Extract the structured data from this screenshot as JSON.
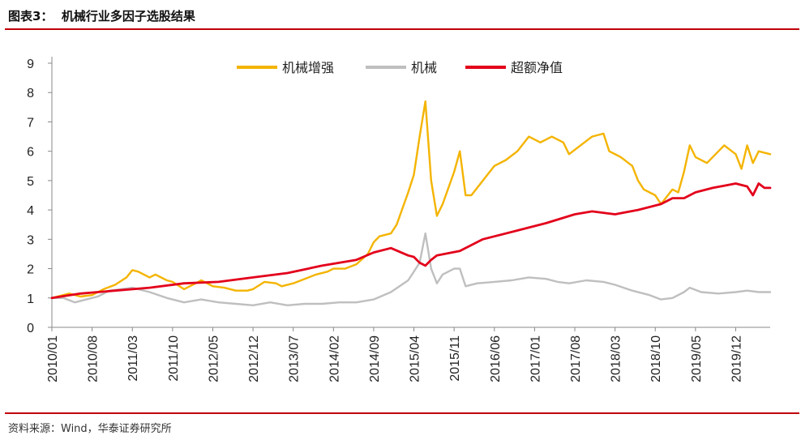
{
  "header": {
    "title": "图表3：  机械行业多因子选股结果"
  },
  "footer": {
    "source": "资料来源：Wind，华泰证券研究所"
  },
  "chart_data": {
    "type": "line",
    "ylim": [
      0,
      9
    ],
    "y_ticks": [
      0,
      1,
      2,
      3,
      4,
      5,
      6,
      7,
      8,
      9
    ],
    "x_range": [
      "2010-01",
      "2020-06"
    ],
    "x_tick_labels": [
      "2010/01",
      "2010/08",
      "2011/03",
      "2011/10",
      "2012/05",
      "2012/12",
      "2013/07",
      "2014/02",
      "2014/09",
      "2015/04",
      "2015/11",
      "2016/06",
      "2017/01",
      "2017/08",
      "2018/03",
      "2018/10",
      "2019/05",
      "2019/12"
    ],
    "legend_position": "top",
    "grid": false,
    "series": [
      {
        "name": "机械增强",
        "color": "#f4b400",
        "points": [
          [
            "2010-01",
            1.0
          ],
          [
            "2010-04",
            1.15
          ],
          [
            "2010-06",
            1.05
          ],
          [
            "2010-08",
            1.1
          ],
          [
            "2010-10",
            1.3
          ],
          [
            "2010-12",
            1.45
          ],
          [
            "2011-02",
            1.7
          ],
          [
            "2011-03",
            1.95
          ],
          [
            "2011-04",
            1.9
          ],
          [
            "2011-06",
            1.7
          ],
          [
            "2011-07",
            1.8
          ],
          [
            "2011-09",
            1.6
          ],
          [
            "2011-10",
            1.55
          ],
          [
            "2011-12",
            1.3
          ],
          [
            "2012-02",
            1.5
          ],
          [
            "2012-03",
            1.6
          ],
          [
            "2012-05",
            1.4
          ],
          [
            "2012-07",
            1.35
          ],
          [
            "2012-09",
            1.25
          ],
          [
            "2012-11",
            1.25
          ],
          [
            "2012-12",
            1.3
          ],
          [
            "2013-02",
            1.55
          ],
          [
            "2013-04",
            1.5
          ],
          [
            "2013-05",
            1.4
          ],
          [
            "2013-07",
            1.5
          ],
          [
            "2013-09",
            1.65
          ],
          [
            "2013-11",
            1.8
          ],
          [
            "2014-01",
            1.9
          ],
          [
            "2014-02",
            2.0
          ],
          [
            "2014-04",
            2.0
          ],
          [
            "2014-06",
            2.15
          ],
          [
            "2014-08",
            2.5
          ],
          [
            "2014-09",
            2.9
          ],
          [
            "2014-10",
            3.1
          ],
          [
            "2014-12",
            3.2
          ],
          [
            "2015-01",
            3.5
          ],
          [
            "2015-03",
            4.6
          ],
          [
            "2015-04",
            5.2
          ],
          [
            "2015-05",
            6.5
          ],
          [
            "2015-06",
            7.7
          ],
          [
            "2015-07",
            5.0
          ],
          [
            "2015-08",
            3.8
          ],
          [
            "2015-09",
            4.2
          ],
          [
            "2015-11",
            5.3
          ],
          [
            "2015-12",
            6.0
          ],
          [
            "2016-01",
            4.5
          ],
          [
            "2016-02",
            4.5
          ],
          [
            "2016-04",
            5.0
          ],
          [
            "2016-06",
            5.5
          ],
          [
            "2016-08",
            5.7
          ],
          [
            "2016-10",
            6.0
          ],
          [
            "2016-12",
            6.5
          ],
          [
            "2017-02",
            6.3
          ],
          [
            "2017-04",
            6.5
          ],
          [
            "2017-06",
            6.3
          ],
          [
            "2017-07",
            5.9
          ],
          [
            "2017-09",
            6.2
          ],
          [
            "2017-11",
            6.5
          ],
          [
            "2018-01",
            6.6
          ],
          [
            "2018-02",
            6.0
          ],
          [
            "2018-04",
            5.8
          ],
          [
            "2018-06",
            5.5
          ],
          [
            "2018-07",
            5.0
          ],
          [
            "2018-08",
            4.7
          ],
          [
            "2018-10",
            4.5
          ],
          [
            "2018-11",
            4.2
          ],
          [
            "2019-01",
            4.7
          ],
          [
            "2019-02",
            4.6
          ],
          [
            "2019-03",
            5.3
          ],
          [
            "2019-04",
            6.2
          ],
          [
            "2019-05",
            5.8
          ],
          [
            "2019-07",
            5.6
          ],
          [
            "2019-09",
            6.0
          ],
          [
            "2019-10",
            6.2
          ],
          [
            "2019-12",
            5.9
          ],
          [
            "2020-01",
            5.4
          ],
          [
            "2020-02",
            6.2
          ],
          [
            "2020-03",
            5.6
          ],
          [
            "2020-04",
            6.0
          ],
          [
            "2020-06",
            5.9
          ]
        ]
      },
      {
        "name": "机械",
        "color": "#bfbfbf",
        "points": [
          [
            "2010-01",
            1.0
          ],
          [
            "2010-03",
            1.0
          ],
          [
            "2010-05",
            0.85
          ],
          [
            "2010-07",
            0.95
          ],
          [
            "2010-09",
            1.05
          ],
          [
            "2010-11",
            1.25
          ],
          [
            "2011-01",
            1.3
          ],
          [
            "2011-03",
            1.35
          ],
          [
            "2011-06",
            1.2
          ],
          [
            "2011-09",
            1.0
          ],
          [
            "2011-12",
            0.85
          ],
          [
            "2012-03",
            0.95
          ],
          [
            "2012-06",
            0.85
          ],
          [
            "2012-09",
            0.8
          ],
          [
            "2012-12",
            0.75
          ],
          [
            "2013-03",
            0.85
          ],
          [
            "2013-06",
            0.75
          ],
          [
            "2013-09",
            0.8
          ],
          [
            "2013-12",
            0.8
          ],
          [
            "2014-03",
            0.85
          ],
          [
            "2014-06",
            0.85
          ],
          [
            "2014-09",
            0.95
          ],
          [
            "2014-12",
            1.2
          ],
          [
            "2015-03",
            1.6
          ],
          [
            "2015-05",
            2.2
          ],
          [
            "2015-06",
            3.2
          ],
          [
            "2015-07",
            2.0
          ],
          [
            "2015-08",
            1.5
          ],
          [
            "2015-09",
            1.8
          ],
          [
            "2015-11",
            2.0
          ],
          [
            "2015-12",
            2.0
          ],
          [
            "2016-01",
            1.4
          ],
          [
            "2016-03",
            1.5
          ],
          [
            "2016-06",
            1.55
          ],
          [
            "2016-09",
            1.6
          ],
          [
            "2016-12",
            1.7
          ],
          [
            "2017-03",
            1.65
          ],
          [
            "2017-05",
            1.55
          ],
          [
            "2017-07",
            1.5
          ],
          [
            "2017-10",
            1.6
          ],
          [
            "2018-01",
            1.55
          ],
          [
            "2018-03",
            1.45
          ],
          [
            "2018-06",
            1.25
          ],
          [
            "2018-09",
            1.1
          ],
          [
            "2018-11",
            0.95
          ],
          [
            "2019-01",
            1.0
          ],
          [
            "2019-03",
            1.2
          ],
          [
            "2019-04",
            1.35
          ],
          [
            "2019-06",
            1.2
          ],
          [
            "2019-09",
            1.15
          ],
          [
            "2019-12",
            1.2
          ],
          [
            "2020-02",
            1.25
          ],
          [
            "2020-04",
            1.2
          ],
          [
            "2020-06",
            1.2
          ]
        ]
      },
      {
        "name": "超额净值",
        "color": "#e3001b",
        "points": [
          [
            "2010-01",
            1.0
          ],
          [
            "2010-06",
            1.15
          ],
          [
            "2010-12",
            1.25
          ],
          [
            "2011-06",
            1.35
          ],
          [
            "2011-12",
            1.5
          ],
          [
            "2012-06",
            1.55
          ],
          [
            "2012-12",
            1.7
          ],
          [
            "2013-06",
            1.85
          ],
          [
            "2013-12",
            2.1
          ],
          [
            "2014-06",
            2.3
          ],
          [
            "2014-09",
            2.55
          ],
          [
            "2014-12",
            2.7
          ],
          [
            "2015-03",
            2.45
          ],
          [
            "2015-04",
            2.4
          ],
          [
            "2015-05",
            2.2
          ],
          [
            "2015-06",
            2.1
          ],
          [
            "2015-07",
            2.3
          ],
          [
            "2015-08",
            2.45
          ],
          [
            "2015-12",
            2.6
          ],
          [
            "2016-04",
            3.0
          ],
          [
            "2016-10",
            3.3
          ],
          [
            "2017-03",
            3.55
          ],
          [
            "2017-08",
            3.85
          ],
          [
            "2017-11",
            3.95
          ],
          [
            "2018-03",
            3.85
          ],
          [
            "2018-07",
            4.0
          ],
          [
            "2018-11",
            4.2
          ],
          [
            "2019-01",
            4.4
          ],
          [
            "2019-03",
            4.4
          ],
          [
            "2019-05",
            4.6
          ],
          [
            "2019-08",
            4.75
          ],
          [
            "2019-12",
            4.9
          ],
          [
            "2020-02",
            4.8
          ],
          [
            "2020-03",
            4.5
          ],
          [
            "2020-04",
            4.9
          ],
          [
            "2020-05",
            4.75
          ],
          [
            "2020-06",
            4.75
          ]
        ]
      }
    ]
  }
}
